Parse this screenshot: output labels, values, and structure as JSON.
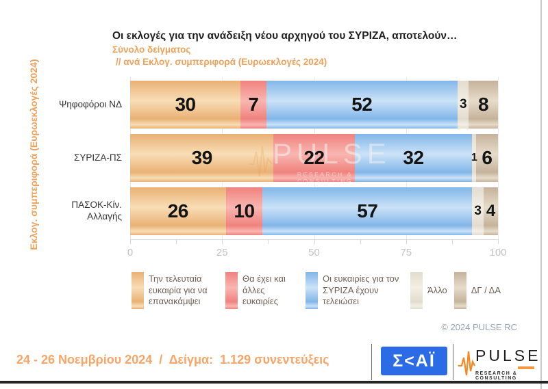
{
  "header": {
    "title": "Οι εκλογές για την ανάδειξη νέου αρχηγού του ΣΥΡΙΖΑ, αποτελούν…",
    "subtitle1": "Σύνολο δείγματος",
    "subtitle2": "// ανά Εκλογ. συμπεριφορά (Ευρωεκλογές 2024)"
  },
  "y_axis_title": "Εκλογ. συμπεριφορά (Ευρωεκλογές 2024)",
  "chart_data": {
    "type": "bar",
    "orientation": "horizontal",
    "stacked": true,
    "categories": [
      "Ψηφοφόροι ΝΔ",
      "ΣΥΡΙΖΑ-ΠΣ",
      "ΠΑΣΟΚ-Κίν. Αλλαγής"
    ],
    "series": [
      {
        "name": "Την τελευταία ευκαιρία για να επανακάμψει",
        "color": "#E9B175",
        "color_light": "#F8DDB6",
        "values": [
          30,
          39,
          26
        ]
      },
      {
        "name": "Θα έχει και άλλες ευκαιρίες",
        "color": "#F0827E",
        "color_light": "#F9B6B1",
        "values": [
          7,
          22,
          10
        ]
      },
      {
        "name": "Οι ευκαιρίες για τον ΣΥΡΙΖΑ έχουν τελειώσει",
        "color": "#82B6E9",
        "color_light": "#CBE2F7",
        "values": [
          52,
          32,
          57
        ]
      },
      {
        "name": "Άλλο",
        "color": "#E3DCCE",
        "color_light": "#F3EFE6",
        "values": [
          3,
          1,
          3
        ]
      },
      {
        "name": "ΔΓ / ΔΑ",
        "color": "#C6B29A",
        "color_light": "#E6DCCB",
        "values": [
          8,
          6,
          4
        ]
      }
    ],
    "x_ticks": [
      0,
      25,
      50,
      75,
      100
    ],
    "minor_tick_step": 12.5,
    "xlim": [
      0,
      100
    ],
    "grid": true,
    "legend_position": "bottom"
  },
  "watermark": {
    "text": "PULSE",
    "subtext": "RESEARCH & CONSULTING"
  },
  "copyright": "© 2024 PULSE RC",
  "footer": {
    "text": "24 - 26 Νοεμβρίου 2024  /  Δείγμα:  1.129 συνεντεύξεις",
    "skai_text": "Σ<ΑΪ",
    "pulse_text": "PULSE",
    "pulse_sub": "RESEARCH & CONSULTING"
  },
  "colors": {
    "accent_orange": "#EFA159",
    "footer_orange": "#F9A568",
    "skai_blue": "#2B6CE6",
    "pulse_orange": "#F6861F",
    "axis_label": "#C2C2C2",
    "legend_text": "#6B6157",
    "copyright_text": "#93A2AF",
    "title_text": "#1F1F1F"
  }
}
